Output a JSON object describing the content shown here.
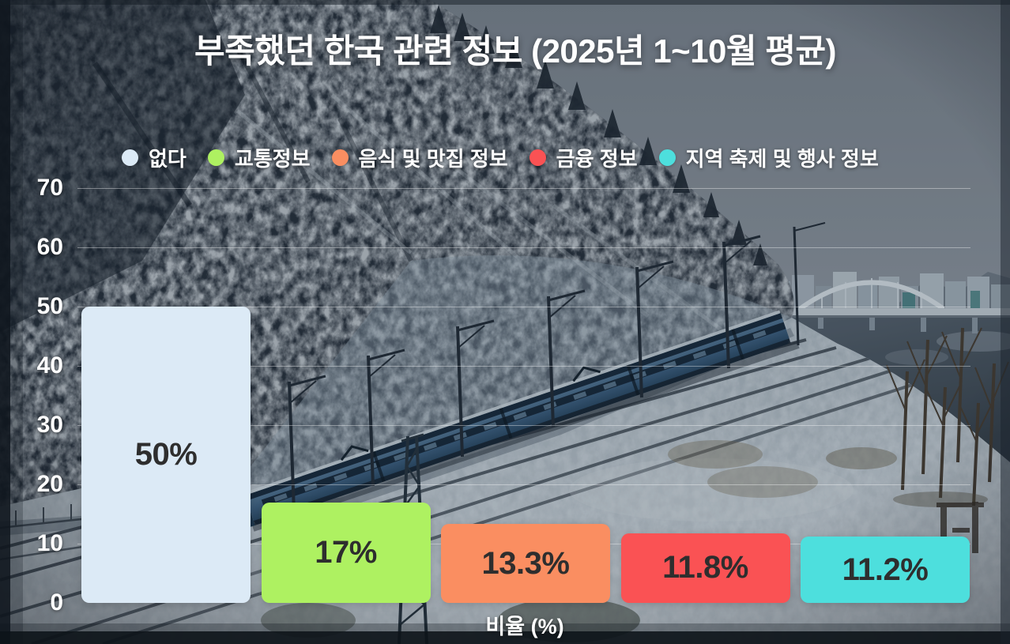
{
  "title": "부족했던 한국 관련 정보 (2025년 1~10월 평균)",
  "chart_data": {
    "type": "bar",
    "title": "부족했던 한국 관련 정보 (2025년 1~10월 평균)",
    "categories": [
      "없다",
      "교통정보",
      "음식 및 맛집 정보",
      "금융 정보",
      "지역 축제 및 행사 정보"
    ],
    "values": [
      50,
      17,
      13.3,
      11.8,
      11.2
    ],
    "labels": [
      "50%",
      "17%",
      "13.3%",
      "11.8%",
      "11.2%"
    ],
    "colors": [
      "#dceaf6",
      "#aef161",
      "#fa8e61",
      "#fa5254",
      "#4ddfdd"
    ],
    "bar_label_color": "#2e2e2e",
    "xlabel": "비율 (%)",
    "ylabel": "",
    "ylim": [
      0,
      70
    ],
    "yticks": [
      0,
      10,
      20,
      30,
      40,
      50,
      60,
      70
    ],
    "grid": true,
    "gridline_color": "rgba(255,255,255,0.38)",
    "legend_position": "top",
    "text_color": "#ffffff"
  },
  "legend": {
    "items": [
      {
        "label": "없다",
        "color": "#dceaf6"
      },
      {
        "label": "교통정보",
        "color": "#aef161"
      },
      {
        "label": "음식 및 맛집 정보",
        "color": "#fa8e61"
      },
      {
        "label": "금융 정보",
        "color": "#fa5254"
      },
      {
        "label": "지역 축제 및 행사 정보",
        "color": "#4ddfdd"
      }
    ]
  },
  "background_scene": "snow-covered mountainside with blue commuter train, arch bridge, river and snowy railway tracks"
}
